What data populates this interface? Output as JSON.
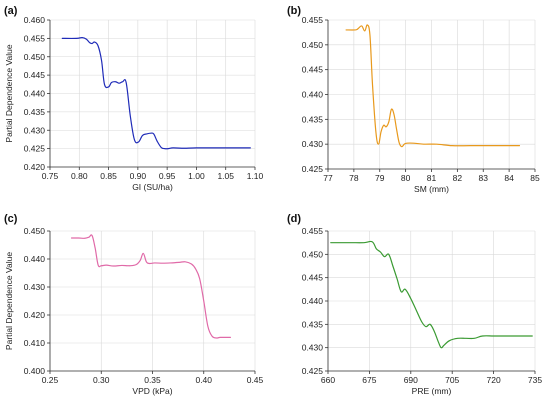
{
  "chart_data": [
    {
      "id": "a",
      "panel_label": "(a)",
      "type": "line",
      "xlabel": "GI (SU/ha)",
      "ylabel": "Partial Dependence Value",
      "xlim": [
        0.75,
        1.1
      ],
      "ylim": [
        0.42,
        0.46
      ],
      "xticks": [
        0.75,
        0.8,
        0.85,
        0.9,
        0.95,
        1.0,
        1.05,
        1.1
      ],
      "xtick_labels": [
        "0.75",
        "0.80",
        "0.85",
        "0.90",
        "0.95",
        "1.00",
        "1.05",
        "1.10"
      ],
      "yticks": [
        0.42,
        0.425,
        0.43,
        0.435,
        0.44,
        0.445,
        0.45,
        0.455,
        0.46
      ],
      "ytick_labels": [
        "0.420",
        "0.425",
        "0.430",
        "0.435",
        "0.440",
        "0.445",
        "0.450",
        "0.455",
        "0.460"
      ],
      "grid": true,
      "color": "#1f2bb8",
      "x": [
        0.771,
        0.795,
        0.805,
        0.812,
        0.818,
        0.822,
        0.826,
        0.832,
        0.838,
        0.843,
        0.85,
        0.855,
        0.862,
        0.868,
        0.874,
        0.88,
        0.887,
        0.894,
        0.901,
        0.908,
        0.915,
        0.922,
        0.927,
        0.933,
        0.94,
        0.946,
        0.952,
        0.96,
        0.975,
        1.0,
        1.03,
        1.06,
        1.092
      ],
      "y": [
        0.455,
        0.455,
        0.4552,
        0.4548,
        0.4538,
        0.4536,
        0.454,
        0.453,
        0.449,
        0.4425,
        0.4418,
        0.443,
        0.4432,
        0.4428,
        0.4432,
        0.443,
        0.434,
        0.4275,
        0.4268,
        0.4286,
        0.429,
        0.4292,
        0.429,
        0.427,
        0.4253,
        0.425,
        0.425,
        0.4252,
        0.4251,
        0.4252,
        0.4252,
        0.4252,
        0.4252
      ]
    },
    {
      "id": "b",
      "panel_label": "(b)",
      "type": "line",
      "xlabel": "SM (mm)",
      "ylabel": "",
      "xlim": [
        77,
        85
      ],
      "ylim": [
        0.425,
        0.455
      ],
      "xticks": [
        77,
        78,
        79,
        80,
        81,
        82,
        83,
        84,
        85
      ],
      "xtick_labels": [
        "77",
        "78",
        "79",
        "80",
        "81",
        "82",
        "83",
        "84",
        "85"
      ],
      "yticks": [
        0.425,
        0.43,
        0.435,
        0.44,
        0.445,
        0.45,
        0.455
      ],
      "ytick_labels": [
        "0.425",
        "0.430",
        "0.435",
        "0.440",
        "0.445",
        "0.450",
        "0.455"
      ],
      "grid": true,
      "color": "#e8991c",
      "x": [
        77.7,
        78.05,
        78.15,
        78.3,
        78.42,
        78.52,
        78.62,
        78.72,
        78.85,
        78.95,
        79.05,
        79.15,
        79.25,
        79.35,
        79.45,
        79.55,
        79.65,
        79.75,
        79.85,
        79.95,
        80.05,
        80.3,
        80.7,
        81.2,
        81.8,
        82.5,
        83.2,
        83.8,
        84.4
      ],
      "y": [
        0.453,
        0.453,
        0.4532,
        0.4538,
        0.4528,
        0.454,
        0.452,
        0.442,
        0.4325,
        0.43,
        0.4325,
        0.4338,
        0.4335,
        0.4345,
        0.437,
        0.436,
        0.433,
        0.4303,
        0.4295,
        0.43,
        0.4302,
        0.4302,
        0.43,
        0.43,
        0.4297,
        0.4297,
        0.4297,
        0.4297,
        0.4297
      ]
    },
    {
      "id": "c",
      "panel_label": "(c)",
      "type": "line",
      "xlabel": "VPD (kPa)",
      "ylabel": "Partial Dependence Value",
      "xlim": [
        0.25,
        0.45
      ],
      "ylim": [
        0.4,
        0.45
      ],
      "xticks": [
        0.25,
        0.3,
        0.35,
        0.4,
        0.45
      ],
      "xtick_labels": [
        "0.25",
        "0.30",
        "0.35",
        "0.40",
        "0.45"
      ],
      "yticks": [
        0.4,
        0.41,
        0.42,
        0.43,
        0.44,
        0.45
      ],
      "ytick_labels": [
        "0.400",
        "0.410",
        "0.420",
        "0.430",
        "0.440",
        "0.450"
      ],
      "grid": true,
      "color": "#e06aa8",
      "x": [
        0.271,
        0.278,
        0.284,
        0.288,
        0.291,
        0.294,
        0.297,
        0.3,
        0.305,
        0.312,
        0.32,
        0.328,
        0.334,
        0.338,
        0.341,
        0.344,
        0.347,
        0.352,
        0.36,
        0.368,
        0.376,
        0.382,
        0.388,
        0.392,
        0.396,
        0.4,
        0.404,
        0.408,
        0.412,
        0.416,
        0.421,
        0.426
      ],
      "y": [
        0.4475,
        0.4475,
        0.4474,
        0.4478,
        0.4484,
        0.444,
        0.4378,
        0.4376,
        0.4378,
        0.4375,
        0.4377,
        0.4376,
        0.438,
        0.4395,
        0.442,
        0.439,
        0.4384,
        0.4386,
        0.4385,
        0.4386,
        0.4388,
        0.439,
        0.4382,
        0.4365,
        0.433,
        0.425,
        0.416,
        0.4125,
        0.4118,
        0.412,
        0.412,
        0.412
      ]
    },
    {
      "id": "d",
      "panel_label": "(d)",
      "type": "line",
      "xlabel": "PRE (mm)",
      "ylabel": "",
      "xlim": [
        660,
        735
      ],
      "ylim": [
        0.425,
        0.455
      ],
      "xticks": [
        660,
        675,
        690,
        705,
        720,
        735
      ],
      "xtick_labels": [
        "660",
        "675",
        "690",
        "705",
        "720",
        "735"
      ],
      "yticks": [
        0.425,
        0.43,
        0.435,
        0.44,
        0.445,
        0.45,
        0.455
      ],
      "ytick_labels": [
        "0.425",
        "0.430",
        "0.435",
        "0.440",
        "0.445",
        "0.450",
        "0.455"
      ],
      "grid": true,
      "color": "#3a9a32",
      "x": [
        661,
        668,
        673,
        676,
        677.5,
        679,
        680.5,
        682,
        683.5,
        685,
        686.5,
        688,
        690,
        692,
        694,
        695.5,
        697,
        698.5,
        700,
        701,
        702,
        704,
        707,
        710,
        713,
        716,
        720,
        725,
        730,
        734
      ],
      "y": [
        0.4525,
        0.4525,
        0.4525,
        0.4527,
        0.4512,
        0.4505,
        0.4495,
        0.45,
        0.4475,
        0.4448,
        0.442,
        0.4425,
        0.4405,
        0.438,
        0.4355,
        0.4345,
        0.435,
        0.4335,
        0.4312,
        0.43,
        0.4305,
        0.4315,
        0.432,
        0.432,
        0.432,
        0.4325,
        0.4325,
        0.4325,
        0.4325,
        0.4325
      ]
    }
  ]
}
